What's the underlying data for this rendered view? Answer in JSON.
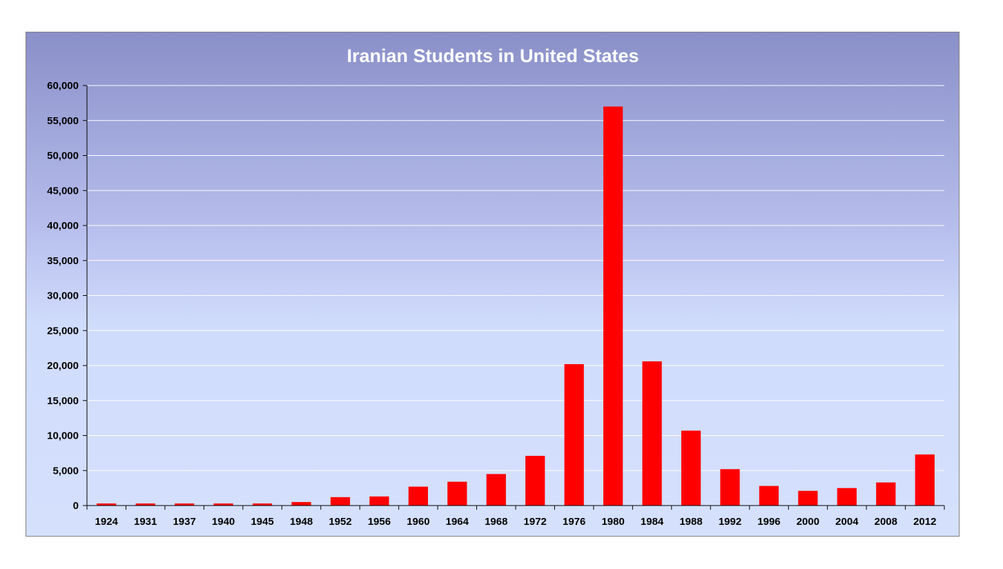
{
  "chart_data": {
    "type": "bar",
    "title": "Iranian Students in United States",
    "xlabel": "",
    "ylabel": "",
    "categories": [
      "1924",
      "1931",
      "1937",
      "1940",
      "1945",
      "1948",
      "1952",
      "1956",
      "1960",
      "1964",
      "1968",
      "1972",
      "1976",
      "1980",
      "1984",
      "1988",
      "1992",
      "1996",
      "2000",
      "2004",
      "2008",
      "2012"
    ],
    "values": [
      300,
      300,
      300,
      300,
      300,
      500,
      1200,
      1300,
      2700,
      3400,
      4500,
      7100,
      20200,
      57000,
      20600,
      10700,
      5200,
      2800,
      2100,
      2500,
      3300,
      7300
    ],
    "ylim": [
      0,
      60000
    ],
    "yticks": [
      0,
      5000,
      10000,
      15000,
      20000,
      25000,
      30000,
      35000,
      40000,
      45000,
      50000,
      55000,
      60000
    ],
    "ytick_labels": [
      "0",
      "5,000",
      "10,000",
      "15,000",
      "20,000",
      "25,000",
      "30,000",
      "35,000",
      "40,000",
      "45,000",
      "50,000",
      "55,000",
      "60,000"
    ],
    "grid": true,
    "legend": "none",
    "colors": {
      "bar": "#ff0000",
      "grid": "#ffffff",
      "title": "#ffffff",
      "axis": "#000000"
    }
  }
}
